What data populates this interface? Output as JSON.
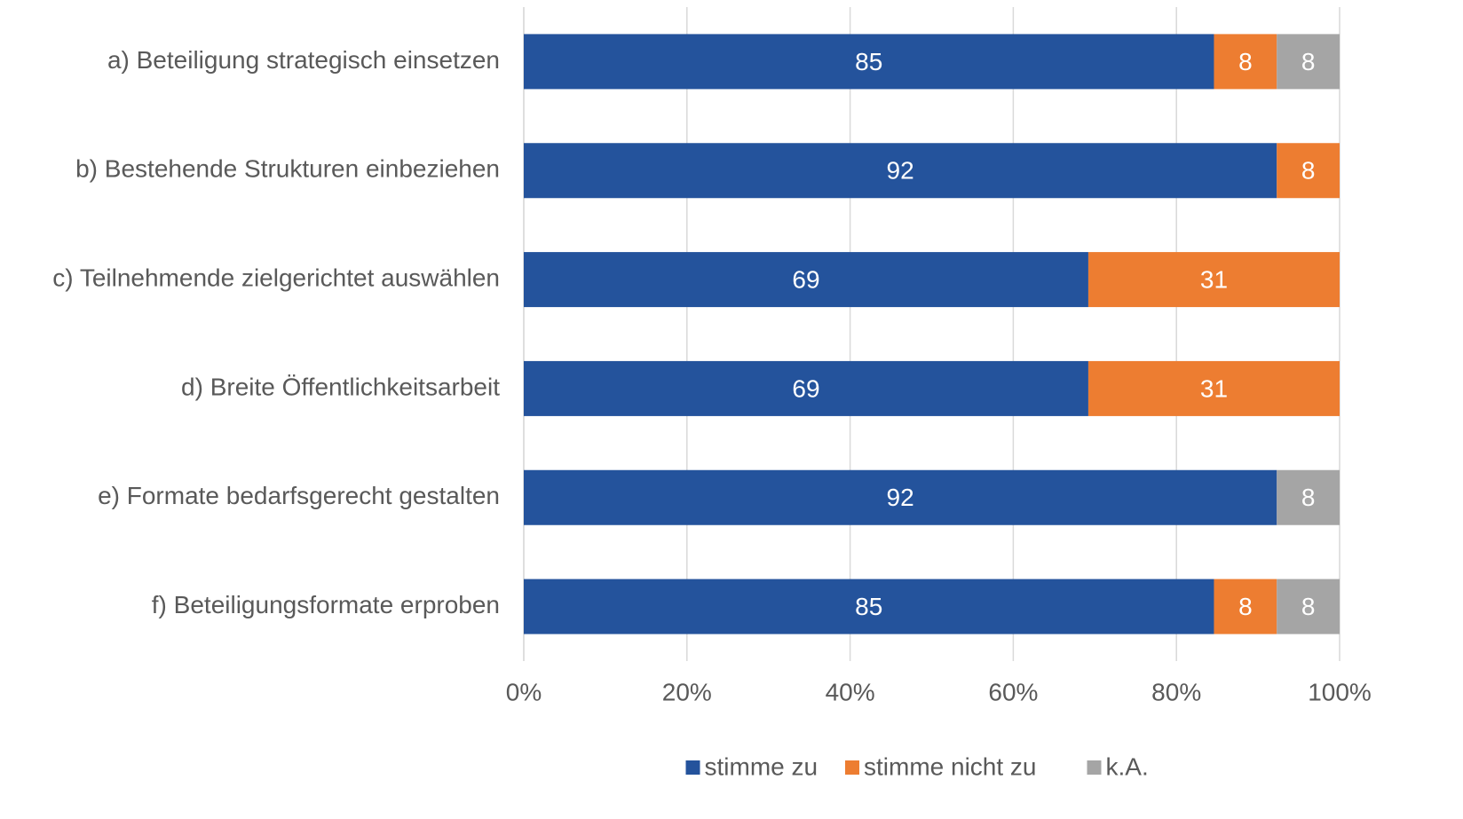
{
  "chart_data": {
    "type": "stacked-bar-horizontal",
    "categories": [
      "a) Beteiligung strategisch einsetzen",
      "b) Bestehende Strukturen einbeziehen",
      "c) Teilnehmende zielgerichtet auswählen",
      "d) Breite Öffentlichkeitsarbeit",
      "e) Formate bedarfsgerecht gestalten",
      "f) Beteiligungsformate erproben"
    ],
    "series": [
      {
        "name": "stimme zu",
        "color": "#24539c",
        "values": [
          84.6,
          92.3,
          69.2,
          69.2,
          92.3,
          84.6
        ],
        "value_labels": [
          "85",
          "92",
          "69",
          "69",
          "92",
          "85"
        ]
      },
      {
        "name": "stimme nicht zu",
        "color": "#ed7d31",
        "values": [
          7.7,
          7.7,
          30.8,
          30.8,
          null,
          7.7
        ],
        "value_labels": [
          "8",
          "8",
          "31",
          "31",
          null,
          "8"
        ]
      },
      {
        "name": "k.A.",
        "color": "#a5a5a5",
        "values": [
          7.7,
          null,
          null,
          null,
          7.7,
          7.7
        ],
        "value_labels": [
          "8",
          null,
          null,
          null,
          "8",
          "8"
        ]
      }
    ],
    "xlim": [
      0,
      100
    ],
    "xticks": [
      {
        "value": 0,
        "label": "0%"
      },
      {
        "value": 20,
        "label": "20%"
      },
      {
        "value": 40,
        "label": "40%"
      },
      {
        "value": 60,
        "label": "60%"
      },
      {
        "value": 80,
        "label": "80%"
      },
      {
        "value": 100,
        "label": "100%"
      }
    ],
    "grid": true,
    "legend": "bottom"
  }
}
